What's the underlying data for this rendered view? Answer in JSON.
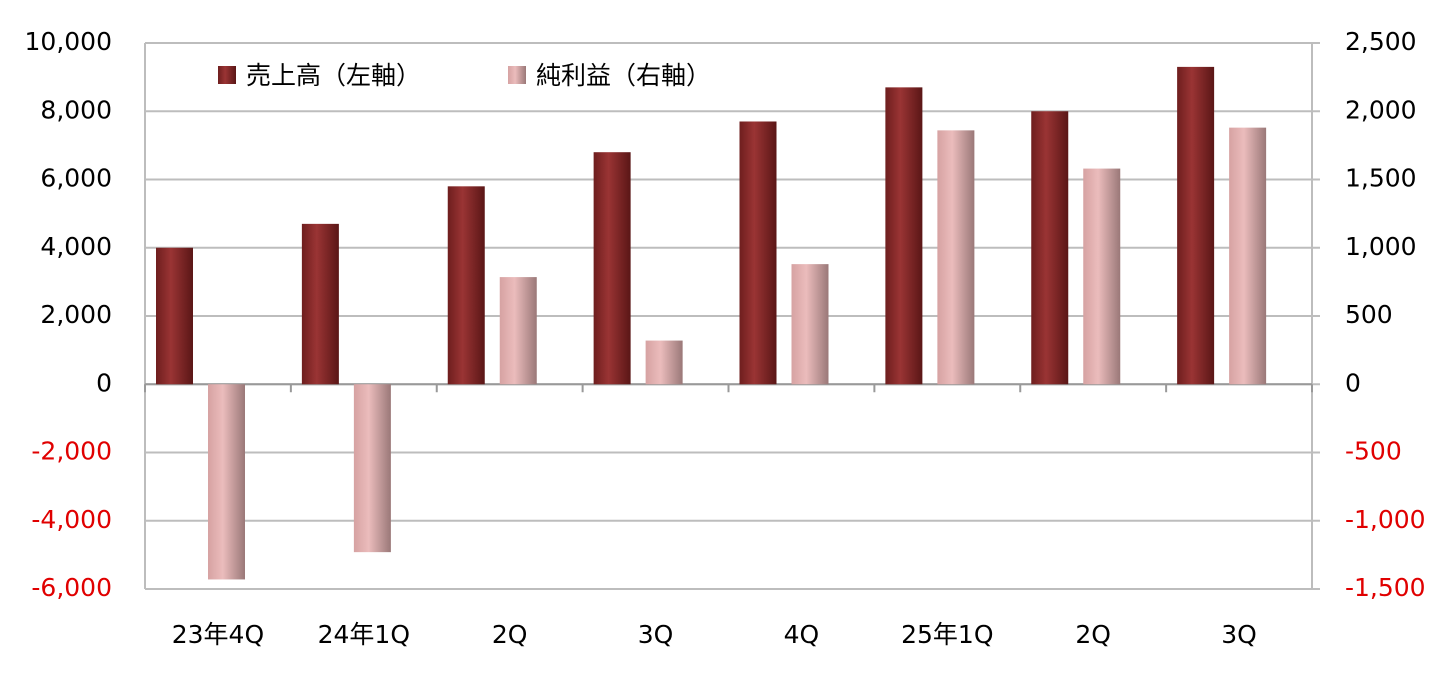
{
  "chart_data": {
    "type": "bar",
    "categories": [
      "23年4Q",
      "24年1Q",
      "2Q",
      "3Q",
      "4Q",
      "25年1Q",
      "2Q",
      "3Q"
    ],
    "series": [
      {
        "name": "売上高（左軸）",
        "color": "#8b2a2a",
        "values": [
          4000,
          4700,
          5800,
          6800,
          7700,
          8700,
          8000,
          9300
        ]
      },
      {
        "name": "純利益（右軸）",
        "color": "#e8b4b4",
        "axis": "y2",
        "values": [
          -1430,
          -1230,
          785,
          320,
          880,
          1860,
          1580,
          1880
        ]
      }
    ],
    "ylim": [
      -6000,
      10000
    ],
    "yticks": [
      {
        "value": -6000,
        "label": "-6,000"
      },
      {
        "value": -4000,
        "label": "-4,000"
      },
      {
        "value": -2000,
        "label": "-2,000"
      },
      0,
      {
        "value": 2000,
        "label": "2,000"
      },
      {
        "value": 4000,
        "label": "4,000"
      },
      {
        "value": 6000,
        "label": "6,000"
      },
      {
        "value": 8000,
        "label": "8,000"
      },
      {
        "value": 10000,
        "label": "10,000"
      }
    ],
    "y2lim": [
      -1500,
      2500
    ],
    "y2ticks": [
      {
        "value": -1500,
        "label": "-1,500"
      },
      {
        "value": -1000,
        "label": "-1,000"
      },
      -500,
      0,
      500,
      {
        "value": 1000,
        "label": "1,000"
      },
      {
        "value": 1500,
        "label": "1,500"
      },
      {
        "value": 2000,
        "label": "2,000"
      },
      {
        "value": 2500,
        "label": "2,500"
      }
    ],
    "grid": true,
    "negative_tick_color": "#e00000",
    "legend": "top-left"
  }
}
